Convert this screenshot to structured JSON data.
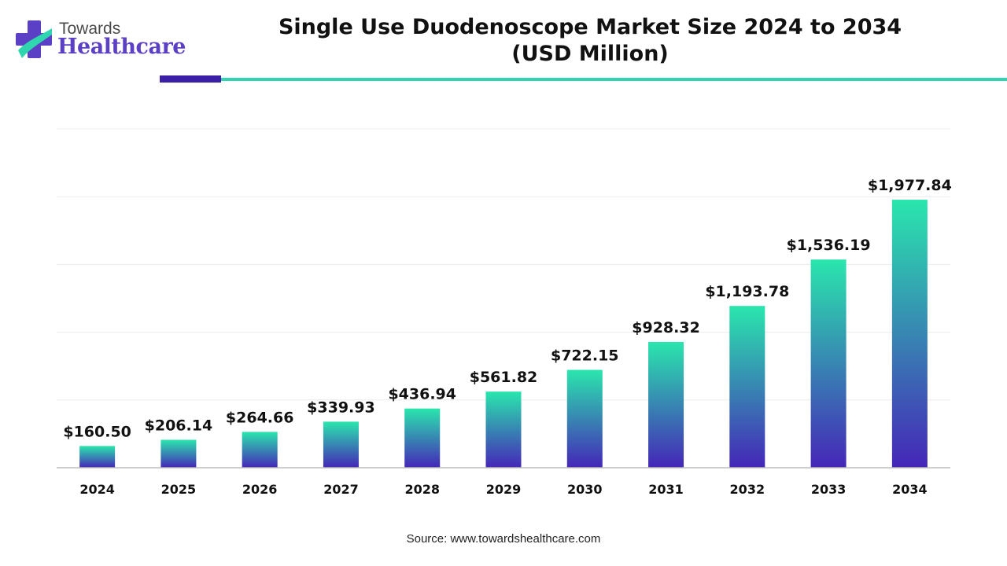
{
  "logo": {
    "top_text": "Towards",
    "main_text": "Healthcare",
    "icon": "plus-cross-logo-icon",
    "colors": {
      "purple": "#5b3fc4",
      "teal": "#2fd5ae"
    }
  },
  "header": {
    "title_line1": "Single Use Duodenoscope Market Size 2024 to 2034",
    "title_line2": "(USD Million)"
  },
  "colors": {
    "bar_top": "#2ae6ad",
    "bar_bottom": "#4526b8",
    "accent_dark": "#3b1fa6",
    "accent_teal": "#2fd5ae"
  },
  "chart_data": {
    "type": "bar",
    "title": "Single Use Duodenoscope Market Size 2024 to 2034 (USD Million)",
    "categories": [
      "2024",
      "2025",
      "2026",
      "2027",
      "2028",
      "2029",
      "2030",
      "2031",
      "2032",
      "2033",
      "2034"
    ],
    "values": [
      160.5,
      206.14,
      264.66,
      339.93,
      436.94,
      561.82,
      722.15,
      928.32,
      1193.78,
      1536.19,
      1977.84
    ],
    "value_labels": [
      "$160.50",
      "$206.14",
      "$264.66",
      "$339.93",
      "$436.94",
      "$561.82",
      "$722.15",
      "$928.32",
      "$1,193.78",
      "$1,536.19",
      "$1,977.84"
    ],
    "xlabel": "",
    "ylabel": "",
    "ylim": [
      0,
      2500
    ],
    "grid": true,
    "legend": "none"
  },
  "footer": {
    "source": "Source: www.towardshealthcare.com"
  }
}
